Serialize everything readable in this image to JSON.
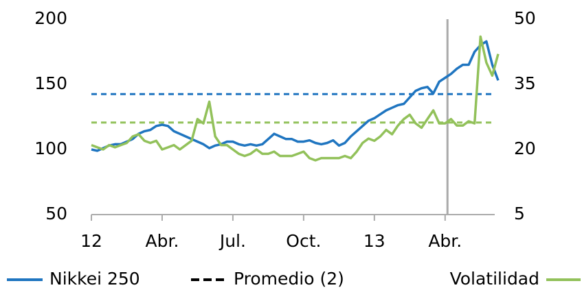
{
  "chart_data": {
    "type": "line",
    "x": [
      0,
      0.25,
      0.5,
      0.75,
      1,
      1.25,
      1.5,
      1.75,
      2,
      2.25,
      2.5,
      2.75,
      3,
      3.25,
      3.5,
      3.75,
      4,
      4.25,
      4.5,
      4.75,
      5,
      5.25,
      5.5,
      5.75,
      6,
      6.25,
      6.5,
      6.75,
      7,
      7.25,
      7.5,
      7.75,
      8,
      8.25,
      8.5,
      8.75,
      9,
      9.25,
      9.5,
      9.75,
      10,
      10.25,
      10.5,
      10.75,
      11,
      11.25,
      11.5,
      11.75,
      12,
      12.25,
      12.5,
      12.75,
      13,
      13.25,
      13.5,
      13.75,
      14,
      14.25,
      14.5,
      14.75,
      15,
      15.25,
      15.5,
      15.75,
      16,
      16.25,
      16.5,
      16.75,
      17,
      17.25
    ],
    "series": [
      {
        "name": "Nikkei 250",
        "color": "#1f75c0",
        "axis": "y",
        "values": [
          100,
          99,
          101,
          103,
          104,
          104,
          106,
          108,
          112,
          114,
          115,
          118,
          119,
          118,
          114,
          112,
          110,
          108,
          106,
          104,
          101,
          103,
          104,
          106,
          106,
          104,
          103,
          104,
          103,
          104,
          108,
          112,
          110,
          108,
          108,
          106,
          106,
          107,
          105,
          104,
          105,
          107,
          103,
          105,
          110,
          114,
          118,
          122,
          124,
          127,
          130,
          132,
          134,
          135,
          140,
          145,
          147,
          148,
          143,
          152,
          155,
          158,
          162,
          165,
          165,
          175,
          180,
          183,
          165,
          153
        ]
      },
      {
        "name": "Volatilidad",
        "color": "#92c15a",
        "axis": "y2",
        "values": [
          21,
          20.5,
          20,
          21,
          20.5,
          21,
          21.5,
          23,
          23.5,
          22,
          21.5,
          22,
          20,
          20.5,
          21,
          20,
          21,
          22,
          27,
          26,
          31,
          23,
          21,
          21,
          20,
          19,
          18.5,
          19,
          20,
          19,
          19,
          19.5,
          18.5,
          18.5,
          18.5,
          19,
          19.5,
          18,
          17.5,
          18,
          18,
          18,
          18,
          18.5,
          18,
          19.5,
          21.5,
          22.5,
          22,
          23,
          24.5,
          23.5,
          25.5,
          27,
          28,
          26,
          25,
          27,
          29,
          26,
          26,
          27,
          25.5,
          25.5,
          26.5,
          26,
          46,
          40,
          37,
          42
        ]
      }
    ],
    "reference_lines": [
      {
        "value": 142.5,
        "axis": "y",
        "color": "#1f75c0"
      },
      {
        "value": 26.2,
        "axis": "y2",
        "color": "#92c15a"
      }
    ],
    "reference_legend": "Promedio (2)",
    "vline": 15.1,
    "xlim": [
      0,
      17.25
    ],
    "xticks": [
      {
        "value": 0,
        "label": "12"
      },
      {
        "value": 3,
        "label": "Abr."
      },
      {
        "value": 6,
        "label": "Jul."
      },
      {
        "value": 9,
        "label": "Oct."
      },
      {
        "value": 12,
        "label": "13"
      },
      {
        "value": 15,
        "label": "Abr."
      }
    ],
    "ylim": [
      50,
      200
    ],
    "yticks": [
      50,
      100,
      150,
      200
    ],
    "y2lim": [
      5,
      50
    ],
    "y2ticks": [
      5,
      20,
      35,
      50
    ]
  }
}
